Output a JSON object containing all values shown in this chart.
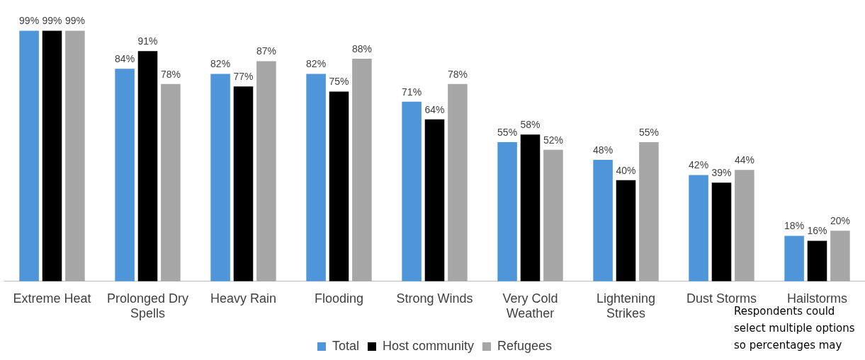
{
  "chart_data": {
    "type": "bar",
    "categories": [
      "Extreme Heat",
      "Prolonged Dry Spells",
      "Heavy Rain",
      "Flooding",
      "Strong Winds",
      "Very Cold Weather",
      "Lightening Strikes",
      "Dust Storms",
      "Hailstorms"
    ],
    "series": [
      {
        "name": "Total",
        "color": "#4e95d9",
        "values": [
          99,
          84,
          82,
          82,
          71,
          55,
          48,
          42,
          18
        ],
        "value_labels": [
          "99%",
          "84%",
          "82%",
          "82%",
          "71%",
          "55%",
          "48%",
          "42%",
          "18%"
        ]
      },
      {
        "name": "Host community",
        "color": "#000000",
        "values": [
          99,
          91,
          77,
          75,
          64,
          58,
          40,
          39,
          16
        ],
        "value_labels": [
          "99%",
          "91%",
          "77%",
          "75%",
          "64%",
          "58%",
          "40%",
          "39%",
          "16%"
        ]
      },
      {
        "name": "Refugees",
        "color": "#a6a6a6",
        "values": [
          99,
          78,
          87,
          88,
          78,
          52,
          55,
          44,
          20
        ],
        "value_labels": [
          "99%",
          "78%",
          "87%",
          "88%",
          "78%",
          "52%",
          "55%",
          "44%",
          "20%"
        ]
      }
    ],
    "ylim": [
      0,
      100
    ],
    "tick_labels": "x",
    "grid": false,
    "legend": "bottom",
    "annotations": [
      "Respondents could select multiple options so percentages may"
    ]
  }
}
